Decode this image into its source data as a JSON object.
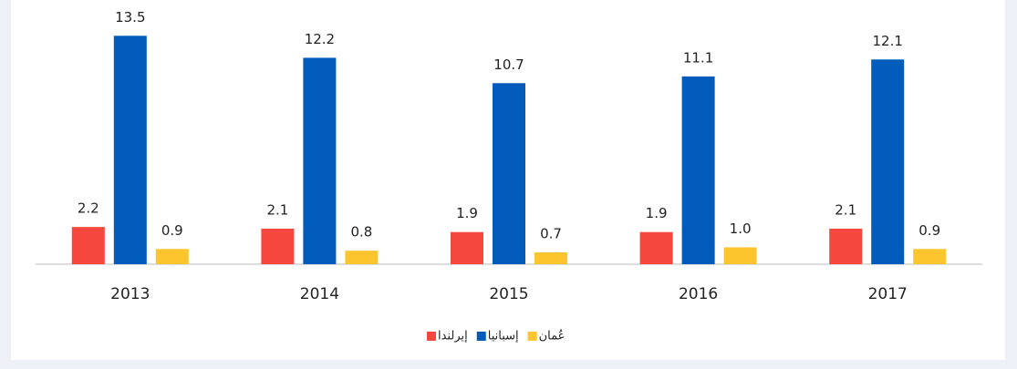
{
  "chart_data": {
    "type": "bar",
    "categories": [
      "2013",
      "2014",
      "2015",
      "2016",
      "2017"
    ],
    "series": [
      {
        "name": "إيرلندا",
        "color": "#f5473e",
        "values": [
          2.2,
          2.1,
          1.9,
          1.9,
          2.1
        ]
      },
      {
        "name": "إسبانيا",
        "color": "#005bbb",
        "values": [
          13.5,
          12.2,
          10.7,
          11.1,
          12.1
        ]
      },
      {
        "name": "عُمان",
        "color": "#fcc52e",
        "values": [
          0.9,
          0.8,
          0.7,
          1,
          0.9
        ],
        "value_labels": [
          "0.9",
          "0.8",
          "0.7",
          "1.0",
          "0.9"
        ]
      }
    ],
    "ylim": [
      0,
      14
    ],
    "legend": "bottom"
  }
}
